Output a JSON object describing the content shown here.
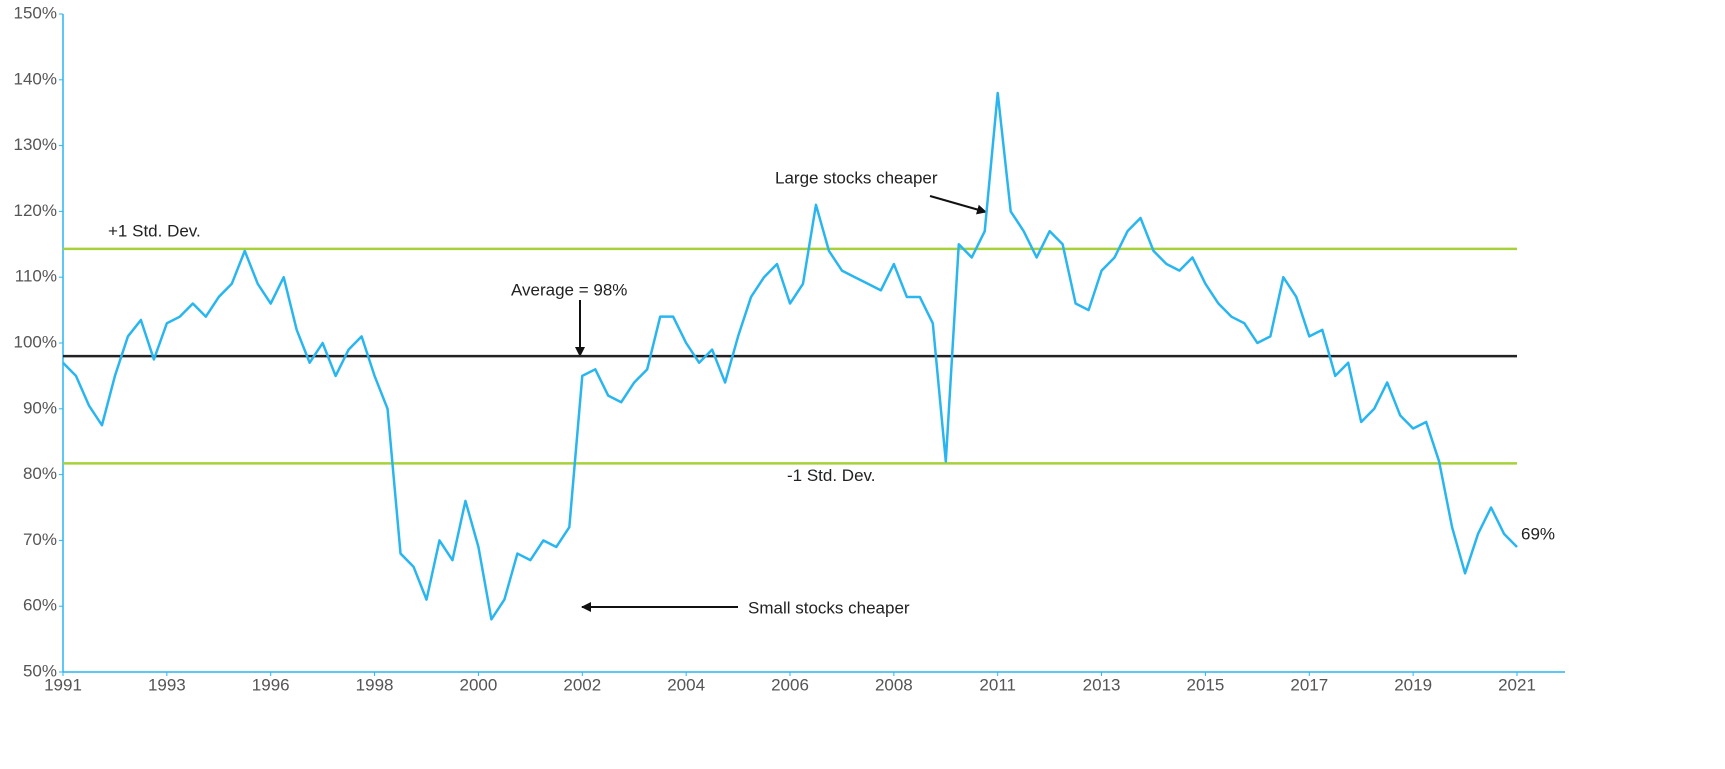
{
  "chart_data": {
    "type": "line",
    "categories": [
      "1991",
      null,
      null,
      null,
      null,
      null,
      null,
      null,
      "1993",
      null,
      null,
      null,
      null,
      null,
      null,
      null,
      "1996",
      null,
      null,
      null,
      null,
      null,
      null,
      null,
      "1998",
      null,
      null,
      null,
      null,
      null,
      null,
      null,
      "2000",
      null,
      null,
      null,
      null,
      null,
      null,
      null,
      "2002",
      null,
      null,
      null,
      null,
      null,
      null,
      null,
      "2004",
      null,
      null,
      null,
      null,
      null,
      null,
      null,
      "2006",
      null,
      null,
      null,
      null,
      null,
      null,
      null,
      "2008",
      null,
      null,
      null,
      null,
      null,
      null,
      null,
      "2011",
      null,
      null,
      null,
      null,
      null,
      null,
      null,
      "2013",
      null,
      null,
      null,
      null,
      null,
      null,
      null,
      "2015",
      null,
      null,
      null,
      null,
      null,
      null,
      null,
      "2017",
      null,
      null,
      null,
      null,
      null,
      null,
      null,
      "2019",
      null,
      null,
      null,
      null,
      null,
      null,
      null,
      "2021"
    ],
    "values": [
      97,
      95,
      90.5,
      87.5,
      95,
      101,
      103.5,
      97.5,
      103,
      104,
      106,
      104,
      107,
      109,
      114,
      109,
      106,
      110,
      102,
      97,
      100,
      95,
      99,
      101,
      95,
      90,
      68,
      66,
      61,
      70,
      67,
      76,
      69,
      58,
      61,
      68,
      67,
      70,
      69,
      72,
      95,
      96,
      92,
      91,
      94,
      96,
      104,
      104,
      100,
      97,
      99,
      94,
      101,
      107,
      110,
      112,
      106,
      109,
      121,
      114,
      111,
      110,
      109,
      108,
      112,
      107,
      107,
      103,
      82,
      115,
      113,
      117,
      138,
      120,
      117,
      113,
      117,
      115,
      106,
      105,
      111,
      113,
      117,
      119,
      114,
      112,
      111,
      113,
      109,
      106,
      104,
      103,
      100,
      101,
      110,
      107,
      101,
      102,
      95,
      97,
      88,
      90,
      94,
      89,
      87,
      88,
      82,
      72,
      65,
      71,
      75,
      71,
      69
    ],
    "color": "#29b6f0",
    "ylim": [
      50,
      150
    ],
    "yticks": [
      {
        "value": 50,
        "label": "50%"
      },
      {
        "value": 60,
        "label": "60%"
      },
      {
        "value": 70,
        "label": "70%"
      },
      {
        "value": 80,
        "label": "80%"
      },
      {
        "value": 90,
        "label": "90%"
      },
      {
        "value": 100,
        "label": "100%"
      },
      {
        "value": 110,
        "label": "110%"
      },
      {
        "value": 120,
        "label": "120%"
      },
      {
        "value": 130,
        "label": "130%"
      },
      {
        "value": 140,
        "label": "140%"
      },
      {
        "value": 150,
        "label": "150%"
      }
    ],
    "reference_lines": [
      {
        "label": "+1 Std. Dev.",
        "value": 114.3,
        "color": "#a6d13a"
      },
      {
        "label": "-1 Std. Dev.",
        "value": 81.7,
        "color": "#a6d13a"
      },
      {
        "label": "Average = 98%",
        "value": 98,
        "color": "#222222"
      }
    ],
    "annotations": [
      "Large stocks cheaper",
      "Small stocks cheaper",
      "69%"
    ],
    "grid": false
  }
}
